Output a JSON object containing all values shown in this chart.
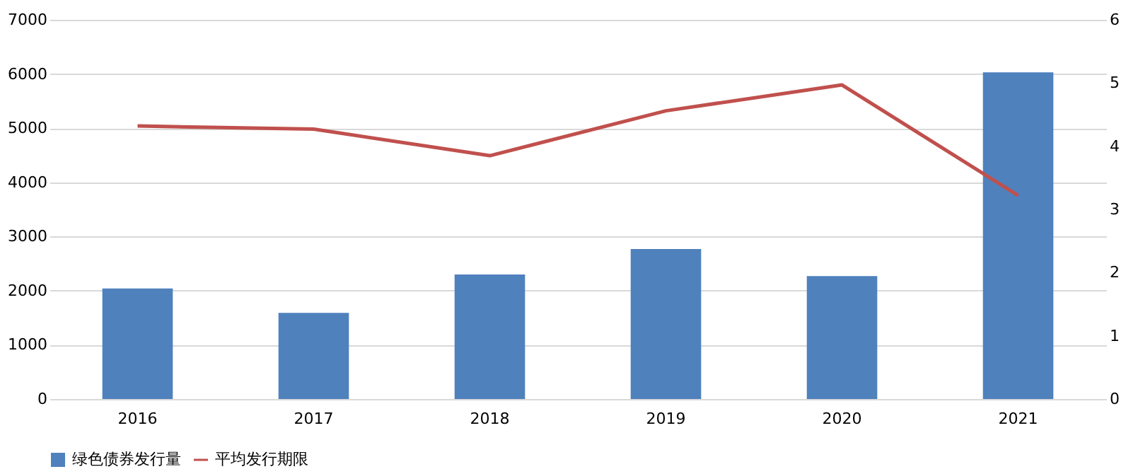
{
  "chart_data": {
    "type": "bar",
    "categories": [
      "2016",
      "2017",
      "2018",
      "2019",
      "2020",
      "2021"
    ],
    "series": [
      {
        "name": "绿色债券发行量",
        "color": "#4f81bd",
        "values": [
          2040,
          1590,
          2300,
          2770,
          2270,
          6030
        ]
      },
      {
        "name": "平均发行期限",
        "type": "line",
        "axis": "y2",
        "color": "#c0504d",
        "values": [
          4.32,
          4.27,
          3.85,
          4.56,
          4.97,
          3.22
        ]
      }
    ],
    "ylim": [
      0,
      7000
    ],
    "yticks": [
      0,
      1000,
      2000,
      3000,
      4000,
      5000,
      6000,
      7000
    ],
    "y2lim": [
      0,
      6
    ],
    "y2ticks": [
      0,
      1,
      2,
      3,
      4,
      5,
      6
    ],
    "grid": "y",
    "legend": "bottom",
    "marker": "none",
    "line_style": "solid"
  }
}
